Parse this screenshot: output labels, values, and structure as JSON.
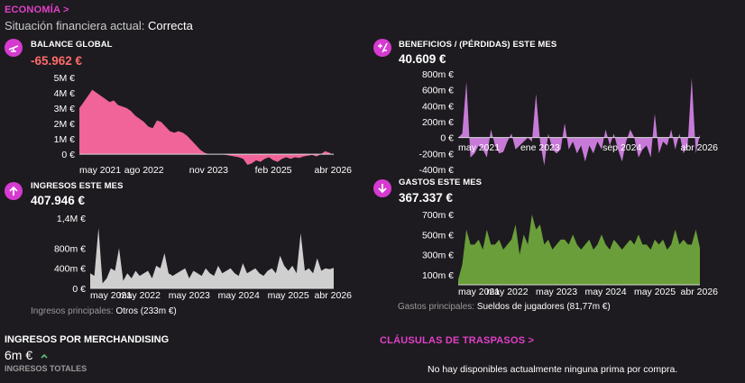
{
  "header": {
    "section_link": "ECONOMÍA >",
    "status_label": "Situación financiera actual:",
    "status_value": "Correcta"
  },
  "colors": {
    "accent": "#e040c8",
    "negative": "#ff6b6b",
    "balance_fill": "#f0649a",
    "profit_fill": "#c77ad8",
    "income_fill": "#cfcfcf",
    "expense_fill": "#6a9e3a"
  },
  "panels": {
    "balance": {
      "icon": "balance-scale-icon",
      "title": "BALANCE GLOBAL",
      "value": "-65.962 €"
    },
    "profit": {
      "icon": "plus-minus-icon",
      "title": "BENEFICIOS / (PÉRDIDAS) ESTE MES",
      "value": "40.609 €"
    },
    "income": {
      "icon": "arrow-up-icon",
      "title": "INGRESOS ESTE MES",
      "value": "407.946 €",
      "foot_label": "Ingresos principales:",
      "foot_value": "Otros (233m €)"
    },
    "expenses": {
      "icon": "arrow-down-icon",
      "title": "GASTOS ESTE MES",
      "value": "367.337 €",
      "foot_label": "Gastos principales:",
      "foot_value": "Sueldos de jugadores (81,77m €)"
    }
  },
  "merchandising": {
    "title": "INGRESOS POR MERCHANDISING",
    "value": "6m €",
    "trend_icon": "chevron-up-icon",
    "subtitle": "INGRESOS TOTALES"
  },
  "transfers": {
    "title": "CLÁUSULAS DE TRASPASOS >",
    "empty_text": "No hay disponibles actualmente ninguna prima por compra."
  },
  "chart_data": [
    {
      "type": "area",
      "id": "balance",
      "yticks": [
        "0 €",
        "1M €",
        "2M €",
        "3M €",
        "4M €",
        "5M €"
      ],
      "ytick_values": [
        0,
        1000000,
        2000000,
        3000000,
        4000000,
        5000000
      ],
      "ylim": [
        -700000,
        5000000
      ],
      "xticks": [
        "may 2021",
        "ago 2022",
        "nov 2023",
        "feb 2025",
        "abr 2026"
      ],
      "xtick_index": [
        0,
        15,
        30,
        45,
        59
      ],
      "values": [
        3000000,
        3400000,
        3800000,
        4200000,
        4000000,
        3800000,
        3600000,
        3400000,
        3500000,
        3200000,
        3100000,
        3000000,
        2800000,
        2500000,
        2300000,
        2100000,
        1800000,
        1700000,
        2200000,
        2100000,
        1800000,
        1500000,
        1400000,
        1500000,
        1400000,
        1200000,
        900000,
        600000,
        300000,
        100000,
        0,
        0,
        0,
        0,
        -50000,
        -100000,
        -150000,
        -200000,
        -300000,
        -700000,
        -600000,
        -400000,
        -500000,
        -300000,
        -200000,
        -400000,
        -500000,
        -300000,
        -200000,
        -300000,
        -200000,
        -250000,
        -150000,
        -100000,
        -50000,
        -150000,
        0,
        200000,
        100000,
        -65962
      ]
    },
    {
      "type": "area",
      "id": "profit",
      "yticks": [
        "-400m €",
        "-200m €",
        "0 €",
        "200m €",
        "400m €",
        "600m €",
        "800m €"
      ],
      "ytick_values": [
        -400000,
        -200000,
        0,
        200000,
        400000,
        600000,
        800000
      ],
      "ylim": [
        -400000,
        800000
      ],
      "xticks": [
        "may 2021",
        "ene 2023",
        "sep 2024",
        "abr 2026"
      ],
      "xtick_index": [
        0,
        20,
        40,
        59
      ],
      "values": [
        0,
        50000,
        700000,
        -250000,
        -200000,
        -100000,
        -150000,
        -250000,
        100000,
        -100000,
        -200000,
        -180000,
        -50000,
        50000,
        -150000,
        -100000,
        -50000,
        0,
        -50000,
        550000,
        -50000,
        -350000,
        50000,
        -150000,
        -200000,
        -150000,
        180000,
        -150000,
        -50000,
        -200000,
        -100000,
        -300000,
        -100000,
        -200000,
        -50000,
        -150000,
        100000,
        -100000,
        50000,
        -150000,
        -300000,
        -50000,
        100000,
        0,
        -250000,
        -150000,
        -100000,
        -250000,
        300000,
        -200000,
        -50000,
        -100000,
        100000,
        -150000,
        50000,
        -200000,
        -100000,
        750000,
        -200000,
        40609
      ]
    },
    {
      "type": "area",
      "id": "income",
      "yticks": [
        "0 €",
        "400m €",
        "800m €",
        "1,4M €"
      ],
      "ytick_values": [
        0,
        400000,
        800000,
        1400000
      ],
      "ylim": [
        0,
        1400000
      ],
      "xticks": [
        "may 2021",
        "may 2022",
        "may 2023",
        "may 2024",
        "may 2025",
        "abr 2026"
      ],
      "xtick_index": [
        0,
        12,
        24,
        36,
        48,
        59
      ],
      "values": [
        300000,
        250000,
        1200000,
        100000,
        200000,
        400000,
        350000,
        800000,
        150000,
        300000,
        200000,
        350000,
        250000,
        300000,
        350000,
        200000,
        450000,
        400000,
        700000,
        300000,
        250000,
        300000,
        350000,
        400000,
        200000,
        350000,
        300000,
        250000,
        400000,
        300000,
        250000,
        450000,
        300000,
        350000,
        400000,
        300000,
        250000,
        500000,
        300000,
        350000,
        400000,
        300000,
        250000,
        350000,
        400000,
        300000,
        650000,
        450000,
        350000,
        450000,
        300000,
        1100000,
        350000,
        400000,
        300000,
        600000,
        350000,
        400000,
        380000,
        407946
      ]
    },
    {
      "type": "area",
      "id": "expenses",
      "yticks": [
        "100m €",
        "300m €",
        "500m €",
        "700m €"
      ],
      "ytick_values": [
        100000,
        300000,
        500000,
        700000
      ],
      "ylim": [
        0,
        700000
      ],
      "xticks": [
        "may 2021",
        "may 2022",
        "may 2023",
        "may 2024",
        "may 2025",
        "abr 2026"
      ],
      "xtick_index": [
        0,
        12,
        24,
        36,
        48,
        59
      ],
      "values": [
        50000,
        200000,
        550000,
        400000,
        400000,
        450000,
        350000,
        550000,
        400000,
        400000,
        450000,
        350000,
        400000,
        450000,
        600000,
        300000,
        500000,
        400000,
        700000,
        550000,
        600000,
        400000,
        450000,
        350000,
        400000,
        450000,
        450000,
        400000,
        500000,
        400000,
        350000,
        400000,
        450000,
        350000,
        400000,
        500000,
        400000,
        350000,
        450000,
        400000,
        350000,
        400000,
        450000,
        400000,
        500000,
        400000,
        400000,
        350000,
        450000,
        400000,
        450000,
        350000,
        400000,
        550000,
        400000,
        450000,
        400000,
        400000,
        550000,
        367337
      ]
    }
  ]
}
